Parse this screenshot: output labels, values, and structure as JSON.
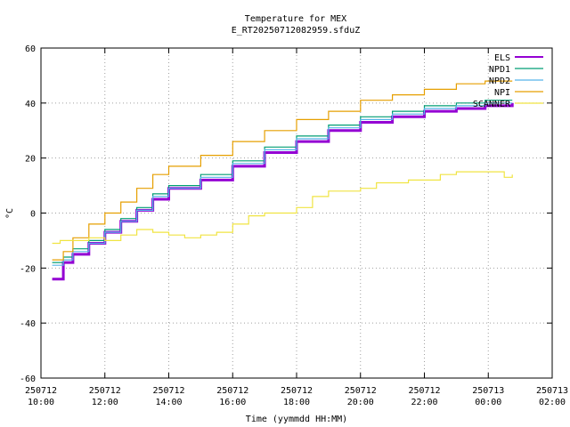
{
  "chart_data": {
    "type": "line",
    "title": "Temperature for MEX",
    "subtitle": "E_RT20250712082959.sfduZ",
    "xlabel": "Time (yymmdd HH:MM)",
    "ylabel": "°C",
    "ylim": [
      -60,
      60
    ],
    "yticks": [
      -60,
      -40,
      -20,
      0,
      20,
      40,
      60
    ],
    "xlim": [
      "2025-07-12 10:00",
      "2025-07-13 02:00"
    ],
    "xticks": [
      {
        "date": "250712",
        "time": "10:00",
        "hour": 10
      },
      {
        "date": "250712",
        "time": "12:00",
        "hour": 12
      },
      {
        "date": "250712",
        "time": "14:00",
        "hour": 14
      },
      {
        "date": "250712",
        "time": "16:00",
        "hour": 16
      },
      {
        "date": "250712",
        "time": "18:00",
        "hour": 18
      },
      {
        "date": "250712",
        "time": "20:00",
        "hour": 20
      },
      {
        "date": "250712",
        "time": "22:00",
        "hour": 22
      },
      {
        "date": "250713",
        "time": "00:00",
        "hour": 24
      },
      {
        "date": "250713",
        "time": "02:00",
        "hour": 26
      }
    ],
    "grid": true,
    "legend_position": "top-right",
    "series": [
      {
        "name": "ELS",
        "color": "#9400d3",
        "x": [
          10.35,
          10.7,
          11.0,
          11.5,
          12.0,
          12.5,
          13.0,
          13.5,
          14.0,
          15.0,
          16.0,
          17.0,
          18.0,
          19.0,
          20.0,
          21.0,
          22.0,
          23.0,
          23.9,
          24.75
        ],
        "values": [
          -24,
          -18,
          -15,
          -11,
          -7,
          -3,
          1,
          5,
          9,
          12,
          17,
          22,
          26,
          30,
          33,
          35,
          37,
          38,
          39,
          40
        ]
      },
      {
        "name": "NPD1",
        "color": "#009e73",
        "x": [
          10.35,
          10.7,
          11.0,
          11.5,
          12.0,
          12.5,
          13.0,
          13.5,
          14.0,
          15.0,
          16.0,
          17.0,
          18.0,
          19.0,
          20.0,
          21.0,
          22.0,
          23.0,
          23.9,
          24.75
        ],
        "values": [
          -18,
          -16,
          -13,
          -10,
          -6,
          -2,
          2,
          7,
          10,
          14,
          19,
          24,
          28,
          32,
          35,
          37,
          39,
          40,
          41,
          41
        ]
      },
      {
        "name": "NPD2",
        "color": "#56b4e9",
        "x": [
          10.35,
          10.7,
          11.0,
          11.5,
          12.0,
          12.5,
          13.0,
          13.5,
          14.0,
          15.0,
          16.0,
          17.0,
          18.0,
          19.0,
          20.0,
          21.0,
          22.0,
          23.0,
          23.9,
          24.75
        ],
        "values": [
          -19,
          -17,
          -14,
          -11,
          -7,
          -3,
          1,
          6,
          9,
          13,
          18,
          23,
          27,
          31,
          34,
          36,
          38,
          39,
          40,
          40
        ]
      },
      {
        "name": "NPI",
        "color": "#e69f00",
        "x": [
          10.35,
          10.7,
          11.0,
          11.5,
          12.0,
          12.5,
          13.0,
          13.5,
          14.0,
          15.0,
          16.0,
          17.0,
          18.0,
          19.0,
          20.0,
          21.0,
          22.0,
          23.0,
          23.9,
          24.75
        ],
        "values": [
          -17,
          -14,
          -9,
          -4,
          0,
          4,
          9,
          14,
          17,
          21,
          26,
          30,
          34,
          37,
          41,
          43,
          45,
          47,
          48,
          48
        ]
      },
      {
        "name": "SCANNER",
        "color": "#f0e442",
        "x": [
          10.35,
          10.6,
          11.0,
          11.5,
          12.0,
          12.5,
          13.0,
          13.5,
          14.0,
          14.5,
          15.0,
          15.5,
          16.0,
          16.5,
          17.0,
          17.5,
          18.0,
          18.5,
          19.0,
          19.5,
          20.0,
          20.5,
          21.0,
          21.5,
          22.0,
          22.5,
          23.0,
          23.5,
          24.0,
          24.5,
          24.75
        ],
        "values": [
          -11,
          -10,
          -10,
          -9,
          -10,
          -8,
          -6,
          -7,
          -8,
          -9,
          -8,
          -7,
          -4,
          -1,
          0,
          0,
          2,
          6,
          8,
          8,
          9,
          11,
          11,
          12,
          12,
          14,
          15,
          15,
          15,
          13,
          14
        ]
      }
    ]
  }
}
